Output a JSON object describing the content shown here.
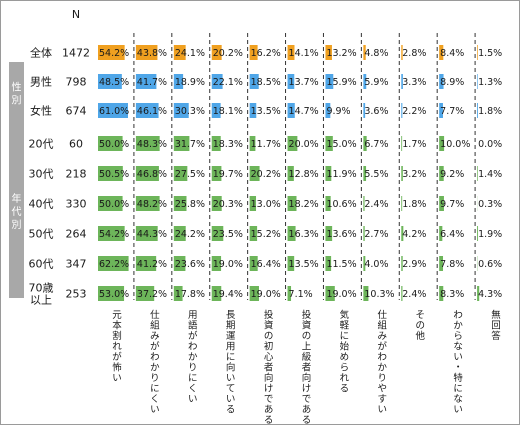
{
  "chart_data": {
    "type": "bar",
    "n_header": "N",
    "categories": [
      "元本割れが怖い",
      "仕組みがわかりにくい",
      "用語がわかりにくい",
      "長期運用に向いている",
      "投資の初心者向けである",
      "投資の上級者向けである",
      "気軽に始められる",
      "仕組みがわかりやすい",
      "その他",
      "わからない・特にない",
      "無回答"
    ],
    "groups": [
      {
        "name": "",
        "rows": [
          0
        ]
      },
      {
        "name": "性別",
        "rows": [
          1,
          2
        ]
      },
      {
        "name": "年代別",
        "rows": [
          3,
          4,
          5,
          6,
          7,
          8
        ]
      }
    ],
    "rows": [
      {
        "label": "全体",
        "n": "1472",
        "color": "#f0a020",
        "values": [
          54.2,
          43.8,
          24.1,
          20.2,
          16.2,
          14.1,
          13.2,
          4.8,
          2.8,
          8.4,
          1.5
        ],
        "labels": [
          "54.2%",
          "43.8%",
          "24.1%",
          "20.2%",
          "16.2%",
          "14.1%",
          "13.2%",
          "4.8%",
          "2.8%",
          "8.4%",
          "1.5%"
        ]
      },
      {
        "label": "男性",
        "n": "798",
        "color": "#4fa6e8",
        "values": [
          48.5,
          41.7,
          18.9,
          22.1,
          18.5,
          13.7,
          15.9,
          5.9,
          3.3,
          8.9,
          1.3
        ],
        "labels": [
          "48.5%",
          "41.7%",
          "18.9%",
          "22.1%",
          "18.5%",
          "13.7%",
          "15.9%",
          "5.9%",
          "3.3%",
          "8.9%",
          "1.3%"
        ]
      },
      {
        "label": "女性",
        "n": "674",
        "color": "#4fa6e8",
        "values": [
          61.0,
          46.1,
          30.3,
          18.1,
          13.5,
          14.7,
          9.9,
          3.6,
          2.2,
          7.7,
          1.8
        ],
        "labels": [
          "61.0%",
          "46.1%",
          "30.3%",
          "18.1%",
          "13.5%",
          "14.7%",
          "9.9%",
          "3.6%",
          "2.2%",
          "7.7%",
          "1.8%"
        ]
      },
      {
        "label": "20代",
        "n": "60",
        "color": "#6db55a",
        "values": [
          50.0,
          48.3,
          31.7,
          18.3,
          11.7,
          20.0,
          15.0,
          6.7,
          1.7,
          10.0,
          0.0
        ],
        "labels": [
          "50.0%",
          "48.3%",
          "31.7%",
          "18.3%",
          "11.7%",
          "20.0%",
          "15.0%",
          "6.7%",
          "1.7%",
          "10.0%",
          "0.0%"
        ]
      },
      {
        "label": "30代",
        "n": "218",
        "color": "#6db55a",
        "values": [
          50.5,
          46.8,
          27.5,
          19.7,
          20.2,
          12.8,
          11.9,
          5.5,
          3.2,
          9.2,
          1.4
        ],
        "labels": [
          "50.5%",
          "46.8%",
          "27.5%",
          "19.7%",
          "20.2%",
          "12.8%",
          "11.9%",
          "5.5%",
          "3.2%",
          "9.2%",
          "1.4%"
        ]
      },
      {
        "label": "40代",
        "n": "330",
        "color": "#6db55a",
        "values": [
          50.0,
          48.2,
          25.8,
          20.3,
          13.0,
          18.2,
          10.6,
          2.4,
          1.8,
          9.7,
          0.3
        ],
        "labels": [
          "50.0%",
          "48.2%",
          "25.8%",
          "20.3%",
          "13.0%",
          "18.2%",
          "10.6%",
          "2.4%",
          "1.8%",
          "9.7%",
          "0.3%"
        ]
      },
      {
        "label": "50代",
        "n": "264",
        "color": "#6db55a",
        "values": [
          54.2,
          44.3,
          24.2,
          23.5,
          15.2,
          16.3,
          13.6,
          2.7,
          4.2,
          6.4,
          1.9
        ],
        "labels": [
          "54.2%",
          "44.3%",
          "24.2%",
          "23.5%",
          "15.2%",
          "16.3%",
          "13.6%",
          "2.7%",
          "4.2%",
          "6.4%",
          "1.9%"
        ]
      },
      {
        "label": "60代",
        "n": "347",
        "color": "#6db55a",
        "values": [
          62.2,
          41.2,
          23.6,
          19.0,
          16.4,
          13.5,
          11.5,
          4.0,
          2.9,
          7.8,
          0.6
        ],
        "labels": [
          "62.2%",
          "41.2%",
          "23.6%",
          "19.0%",
          "16.4%",
          "13.5%",
          "11.5%",
          "4.0%",
          "2.9%",
          "7.8%",
          "0.6%"
        ]
      },
      {
        "label": "70歳以上",
        "n": "253",
        "color": "#6db55a",
        "values": [
          53.0,
          37.2,
          17.8,
          19.4,
          19.0,
          7.1,
          19.0,
          10.3,
          2.4,
          8.3,
          4.3
        ],
        "labels": [
          "53.0%",
          "37.2%",
          "17.8%",
          "19.4%",
          "19.0%",
          "7.1%",
          "19.0%",
          "10.3%",
          "2.4%",
          "8.3%",
          "4.3%"
        ]
      }
    ],
    "group_bar_color": "#a8a8a8",
    "divider_color": "#333333"
  }
}
